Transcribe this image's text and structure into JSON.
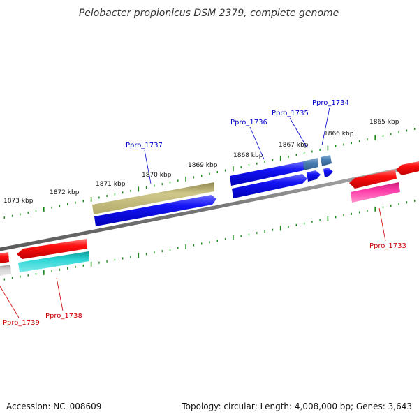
{
  "title": "Pelobacter propionicus DSM 2379, complete genome",
  "footer": {
    "accession": "Accession: NC_008609",
    "topology": "Topology: circular; Length: 4,008,000 bp; Genes: 3,643"
  },
  "scale_ticks": [
    "1873 kbp",
    "1872 kbp",
    "1871 kbp",
    "1870 kbp",
    "1869 kbp",
    "1868 kbp",
    "1867 kbp",
    "1866 kbp",
    "1865 kbp"
  ],
  "forward_genes": [
    {
      "name": "Ppro_1737",
      "color": "#0000cc"
    },
    {
      "name": "Ppro_1736",
      "color": "#0000cc"
    },
    {
      "name": "Ppro_1735",
      "color": "#0000cc"
    },
    {
      "name": "Ppro_1734",
      "color": "#0000cc"
    }
  ],
  "reverse_genes": [
    {
      "name": "Ppro_1739",
      "color": "#cc0000"
    },
    {
      "name": "Ppro_1738",
      "color": "#cc0000"
    },
    {
      "name": "Ppro_1733",
      "color": "#cc0000"
    }
  ],
  "colors": {
    "cds_forward": "#0a0af0",
    "cds_reverse": "#ee0000",
    "rna_olive": "#bdb66e",
    "steel_blue": "#4a7fb5",
    "cyan": "#1ecbcb",
    "magenta": "#ff33aa",
    "grey": "#c8c8c8",
    "backbone": "#888888",
    "tick": "#1a8a1a"
  }
}
